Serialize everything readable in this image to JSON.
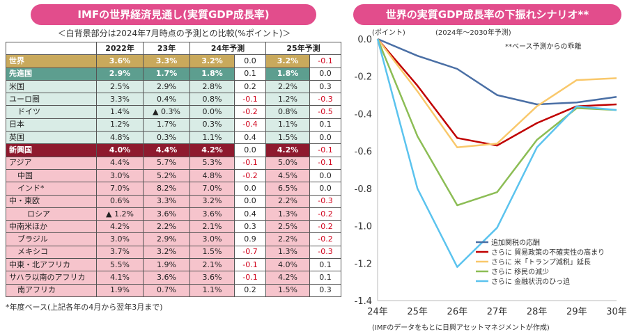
{
  "left_title": "IMFの世界経済見通し(実質GDP成長率)",
  "left_subtitle": "＜白背景部分は2024年7月時点の予測との比較(%ポイント)＞",
  "table": {
    "headers": [
      "",
      "2022年",
      "23年",
      "24年予測",
      "",
      "25年予測",
      ""
    ],
    "rows": [
      {
        "name": "世界",
        "cls": "world",
        "indent": 0,
        "v": [
          "3.6%",
          "3.3%",
          "3.2%",
          "0.0",
          "3.2%",
          "-0.1"
        ]
      },
      {
        "name": "先進国",
        "cls": "adv-h",
        "indent": 0,
        "v": [
          "2.9%",
          "1.7%",
          "1.8%",
          "0.1",
          "1.8%",
          "0.0"
        ]
      },
      {
        "name": "米国",
        "cls": "adv",
        "indent": 0,
        "v": [
          "2.5%",
          "2.9%",
          "2.8%",
          "0.2",
          "2.2%",
          "0.3"
        ]
      },
      {
        "name": "ユーロ圏",
        "cls": "adv",
        "indent": 0,
        "v": [
          "3.3%",
          "0.4%",
          "0.8%",
          "-0.1",
          "1.2%",
          "-0.3"
        ]
      },
      {
        "name": "ドイツ",
        "cls": "adv",
        "indent": 1,
        "v": [
          "1.4%",
          "▲ 0.3%",
          "0.0%",
          "-0.2",
          "0.8%",
          "-0.5"
        ]
      },
      {
        "name": "日本",
        "cls": "adv",
        "indent": 0,
        "v": [
          "1.2%",
          "1.7%",
          "0.3%",
          "-0.4",
          "1.1%",
          "0.1"
        ]
      },
      {
        "name": "英国",
        "cls": "adv",
        "indent": 0,
        "v": [
          "4.8%",
          "0.3%",
          "1.1%",
          "0.4",
          "1.5%",
          "0.0"
        ]
      },
      {
        "name": "新興国",
        "cls": "emg-h",
        "indent": 0,
        "v": [
          "4.0%",
          "4.4%",
          "4.2%",
          "0.0",
          "4.2%",
          "-0.1"
        ]
      },
      {
        "name": "アジア",
        "cls": "emg",
        "indent": 0,
        "v": [
          "4.4%",
          "5.7%",
          "5.3%",
          "-0.1",
          "5.0%",
          "-0.1"
        ]
      },
      {
        "name": "中国",
        "cls": "emg",
        "indent": 1,
        "v": [
          "3.0%",
          "5.2%",
          "4.8%",
          "-0.2",
          "4.5%",
          "0.0"
        ]
      },
      {
        "name": "インド*",
        "cls": "emg",
        "indent": 1,
        "v": [
          "7.0%",
          "8.2%",
          "7.0%",
          "0.0",
          "6.5%",
          "0.0"
        ]
      },
      {
        "name": "中・東欧",
        "cls": "emg",
        "indent": 0,
        "v": [
          "0.6%",
          "3.3%",
          "3.2%",
          "0.0",
          "2.2%",
          "-0.3"
        ]
      },
      {
        "name": "ロシア",
        "cls": "emg",
        "indent": 2,
        "v": [
          "▲ 1.2%",
          "3.6%",
          "3.6%",
          "0.4",
          "1.3%",
          "-0.2"
        ]
      },
      {
        "name": "中南米ほか",
        "cls": "emg",
        "indent": 0,
        "v": [
          "4.2%",
          "2.2%",
          "2.1%",
          "0.3",
          "2.5%",
          "-0.2"
        ]
      },
      {
        "name": "ブラジル",
        "cls": "emg",
        "indent": 1,
        "v": [
          "3.0%",
          "2.9%",
          "3.0%",
          "0.9",
          "2.2%",
          "-0.2"
        ]
      },
      {
        "name": "メキシコ",
        "cls": "emg",
        "indent": 1,
        "v": [
          "3.7%",
          "3.2%",
          "1.5%",
          "-0.7",
          "1.3%",
          "-0.3"
        ]
      },
      {
        "name": "中東・北アフリカ",
        "cls": "emg",
        "indent": 0,
        "v": [
          "5.5%",
          "1.9%",
          "2.1%",
          "-0.1",
          "4.0%",
          "0.1"
        ]
      },
      {
        "name": "サハラ以南のアフリカ",
        "cls": "emg",
        "indent": 0,
        "v": [
          "4.1%",
          "3.6%",
          "3.6%",
          "-0.1",
          "4.2%",
          "0.1"
        ]
      },
      {
        "name": "南アフリカ",
        "cls": "emg",
        "indent": 1,
        "v": [
          "1.9%",
          "0.7%",
          "1.1%",
          "0.2",
          "1.5%",
          "0.3"
        ]
      }
    ]
  },
  "footnote": "*年度ベース(上記各年の4月から翌年3月まで)",
  "right_title": "世界の実質GDP成長率の下振れシナリオ**",
  "chart_data": {
    "type": "line",
    "title": "世界の実質GDP成長率の下振れシナリオ**",
    "unit_label": "(ポイント)",
    "period_label": "(2024年～2030年予測)",
    "note": "**ベース予測からの乖離",
    "source": "(IMFのデータをもとに日興アセットマネジメントが作成)",
    "categories": [
      "24年",
      "25年",
      "26年",
      "27年",
      "28年",
      "29年",
      "30年"
    ],
    "ylim": [
      -1.4,
      0.0
    ],
    "yticks": [
      "0.0",
      "-0.2",
      "-0.4",
      "-0.6",
      "-0.8",
      "-1.0",
      "-1.2",
      "-1.4"
    ],
    "series": [
      {
        "name": "追加関税の応酬",
        "color": "#4a6fa5",
        "values": [
          0.0,
          -0.09,
          -0.16,
          -0.3,
          -0.35,
          -0.34,
          -0.31
        ]
      },
      {
        "name": "さらに 貿易政策の不確実性の高まり",
        "color": "#c00000",
        "values": [
          0.0,
          -0.25,
          -0.53,
          -0.57,
          -0.45,
          -0.36,
          -0.35
        ]
      },
      {
        "name": "さらに 米「トランプ減税」延長",
        "color": "#f9c86b",
        "values": [
          0.0,
          -0.28,
          -0.58,
          -0.56,
          -0.36,
          -0.22,
          -0.21
        ]
      },
      {
        "name": "さらに 移民の減少",
        "color": "#8cbd55",
        "values": [
          0.0,
          -0.52,
          -0.89,
          -0.82,
          -0.54,
          -0.37,
          -0.38
        ]
      },
      {
        "name": "さらに 金融状況のひっ迫",
        "color": "#5bc3ee",
        "values": [
          0.0,
          -0.8,
          -1.22,
          -1.01,
          -0.58,
          -0.36,
          -0.38
        ]
      }
    ]
  }
}
